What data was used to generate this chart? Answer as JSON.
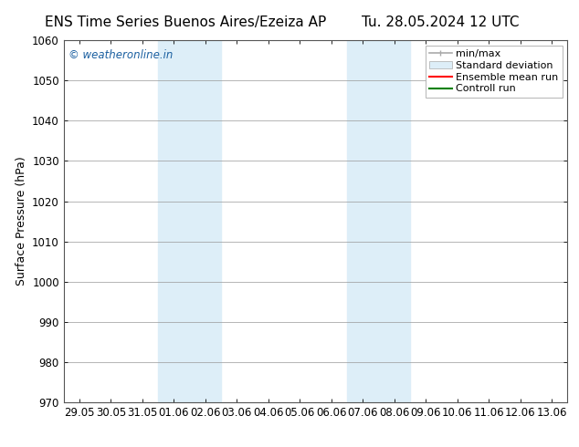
{
  "title_left": "ENS Time Series Buenos Aires/Ezeiza AP",
  "title_right": "Tu. 28.05.2024 12 UTC",
  "ylabel": "Surface Pressure (hPa)",
  "ylim": [
    970,
    1060
  ],
  "yticks": [
    970,
    980,
    990,
    1000,
    1010,
    1020,
    1030,
    1040,
    1050,
    1060
  ],
  "xtick_labels": [
    "29.05",
    "30.05",
    "31.05",
    "01.06",
    "02.06",
    "03.06",
    "04.06",
    "05.06",
    "06.06",
    "07.06",
    "08.06",
    "09.06",
    "10.06",
    "11.06",
    "12.06",
    "13.06"
  ],
  "shaded_regions": [
    {
      "xstart": 3,
      "xend": 5,
      "color": "#ddeef8"
    },
    {
      "xstart": 9,
      "xend": 11,
      "color": "#ddeef8"
    }
  ],
  "watermark": "© weatheronline.in",
  "watermark_color": "#1a5fa0",
  "legend_items": [
    {
      "label": "min/max",
      "color": "#aaaaaa",
      "style": "errorbar"
    },
    {
      "label": "Standard deviation",
      "color": "#ddeef8",
      "style": "rect"
    },
    {
      "label": "Ensemble mean run",
      "color": "#ff0000",
      "style": "line"
    },
    {
      "label": "Controll run",
      "color": "#008000",
      "style": "line"
    }
  ],
  "background_color": "#ffffff",
  "grid_color": "#999999",
  "title_fontsize": 11,
  "axis_fontsize": 9,
  "tick_fontsize": 8.5,
  "legend_fontsize": 8
}
